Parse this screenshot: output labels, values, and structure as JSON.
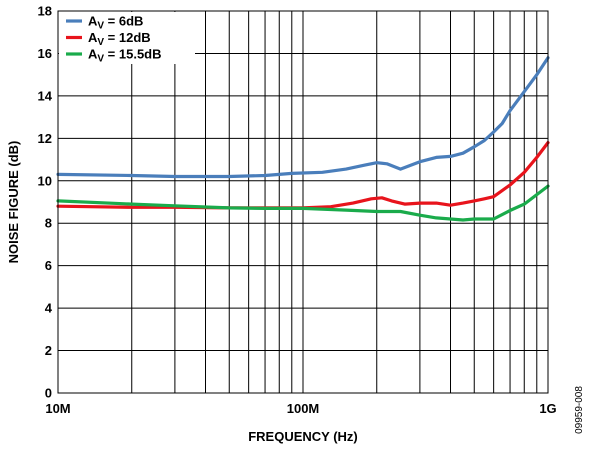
{
  "chart_data": {
    "type": "line",
    "xlabel": "FREQUENCY (Hz)",
    "ylabel": "NOISE FIGURE (dB)",
    "figure_code": "09959-008",
    "x_scale": "log",
    "xlim": [
      10000000,
      1000000000
    ],
    "ylim": [
      0,
      18
    ],
    "grid": true,
    "legend_position": "top-left",
    "x_ticks": [
      {
        "value": 10000000,
        "label": "10M"
      },
      {
        "value": 100000000,
        "label": "100M"
      },
      {
        "value": 1000000000,
        "label": "1G"
      }
    ],
    "y_ticks": [
      {
        "value": 0,
        "label": "0"
      },
      {
        "value": 2,
        "label": "2"
      },
      {
        "value": 4,
        "label": "4"
      },
      {
        "value": 6,
        "label": "6"
      },
      {
        "value": 8,
        "label": "8"
      },
      {
        "value": 10,
        "label": "10"
      },
      {
        "value": 12,
        "label": "12"
      },
      {
        "value": 14,
        "label": "14"
      },
      {
        "value": 16,
        "label": "16"
      },
      {
        "value": 18,
        "label": "18"
      }
    ],
    "series": [
      {
        "name": "AV = 6dB",
        "label_main": "A",
        "label_sub": "V",
        "label_rest": " = 6dB",
        "color": "#4a7ebb",
        "x": [
          10000000,
          20000000,
          30000000,
          50000000,
          70000000,
          90000000,
          120000000,
          150000000,
          180000000,
          200000000,
          220000000,
          250000000,
          300000000,
          350000000,
          400000000,
          450000000,
          500000000,
          550000000,
          600000000,
          650000000,
          700000000,
          800000000,
          900000000,
          1000000000
        ],
        "values": [
          10.3,
          10.25,
          10.2,
          10.2,
          10.25,
          10.35,
          10.4,
          10.55,
          10.75,
          10.85,
          10.8,
          10.55,
          10.9,
          11.1,
          11.15,
          11.3,
          11.6,
          11.9,
          12.3,
          12.7,
          13.3,
          14.2,
          15.0,
          15.8
        ]
      },
      {
        "name": "AV = 12dB",
        "label_main": "A",
        "label_sub": "V",
        "label_rest": " = 12dB",
        "color": "#e8141c",
        "x": [
          10000000,
          20000000,
          30000000,
          50000000,
          70000000,
          100000000,
          130000000,
          160000000,
          190000000,
          210000000,
          230000000,
          260000000,
          300000000,
          350000000,
          400000000,
          450000000,
          500000000,
          550000000,
          600000000,
          700000000,
          800000000,
          900000000,
          1000000000
        ],
        "values": [
          8.8,
          8.75,
          8.75,
          8.72,
          8.72,
          8.72,
          8.78,
          8.95,
          9.15,
          9.2,
          9.05,
          8.9,
          8.95,
          8.95,
          8.85,
          8.95,
          9.05,
          9.15,
          9.25,
          9.8,
          10.4,
          11.1,
          11.8
        ]
      },
      {
        "name": "AV = 15.5dB",
        "label_main": "A",
        "label_sub": "V",
        "label_rest": " = 15.5dB",
        "color": "#1aab4b",
        "x": [
          10000000,
          20000000,
          30000000,
          50000000,
          70000000,
          100000000,
          150000000,
          200000000,
          250000000,
          300000000,
          350000000,
          400000000,
          450000000,
          500000000,
          550000000,
          600000000,
          700000000,
          800000000,
          900000000,
          1000000000
        ],
        "values": [
          9.05,
          8.9,
          8.82,
          8.72,
          8.7,
          8.7,
          8.62,
          8.55,
          8.55,
          8.38,
          8.25,
          8.2,
          8.15,
          8.2,
          8.2,
          8.2,
          8.6,
          8.9,
          9.35,
          9.75
        ]
      }
    ]
  }
}
